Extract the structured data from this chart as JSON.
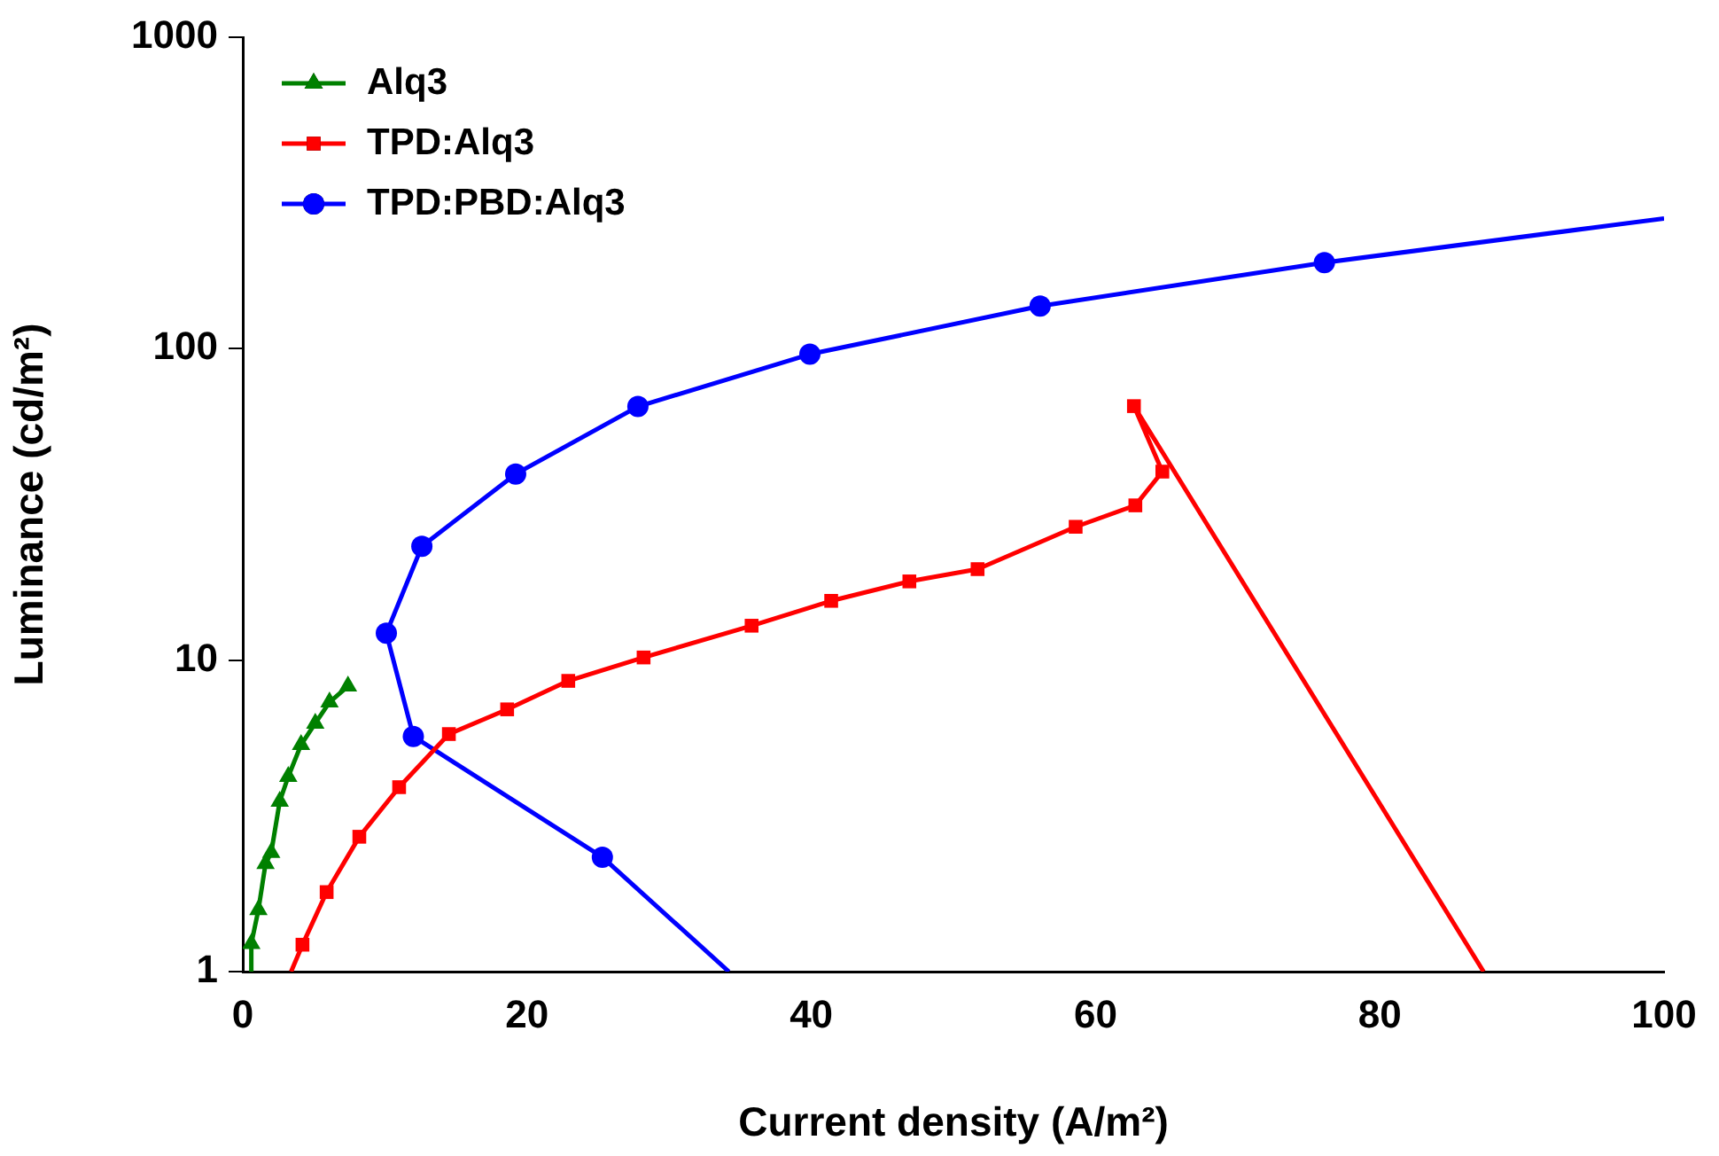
{
  "chart_data": {
    "type": "line",
    "xlabel": "Current density (A/m²)",
    "ylabel": "Luminance (cd/m²)",
    "xlim": [
      0,
      100
    ],
    "xticks": [
      0,
      20,
      40,
      60,
      80,
      100
    ],
    "ylim": [
      1,
      1000
    ],
    "yticks": [
      1,
      10,
      100,
      1000
    ],
    "log": "y",
    "grid": false,
    "legend": "top left",
    "line_style": "solid",
    "series": [
      {
        "name": "Alq3",
        "color": "#008000",
        "marker": "triangle",
        "x": [
          0.6,
          0.6,
          1.1,
          1.6,
          2.0,
          2.6,
          3.2,
          4.1,
          5.1,
          6.1,
          7.4
        ],
        "values": [
          1,
          1.23,
          1.58,
          2.22,
          2.41,
          3.52,
          4.23,
          5.35,
          6.27,
          7.33,
          8.25
        ]
      },
      {
        "name": "TPD:Alq3",
        "color": "#ff0000",
        "marker": "square",
        "x": [
          3.4,
          4.2,
          5.9,
          8.2,
          11.0,
          14.5,
          18.6,
          22.9,
          28.2,
          35.8,
          41.4,
          46.9,
          51.7,
          58.6,
          62.8,
          64.7,
          62.7,
          87.3
        ],
        "values": [
          1,
          1.22,
          1.8,
          2.71,
          3.91,
          5.79,
          6.95,
          8.58,
          10.2,
          12.9,
          15.5,
          17.9,
          19.6,
          26.8,
          31.4,
          40.3,
          65.4,
          1
        ]
      },
      {
        "name": "TPD:PBD:Alq3",
        "color": "#0000ff",
        "marker": "circle",
        "x": [
          34.2,
          25.3,
          12.0,
          10.1,
          12.6,
          19.2,
          27.8,
          39.9,
          56.1,
          76.1,
          100
        ],
        "values": [
          1,
          2.33,
          5.69,
          12.2,
          23.2,
          39.6,
          65.2,
          96,
          137,
          189,
          262
        ]
      }
    ]
  }
}
